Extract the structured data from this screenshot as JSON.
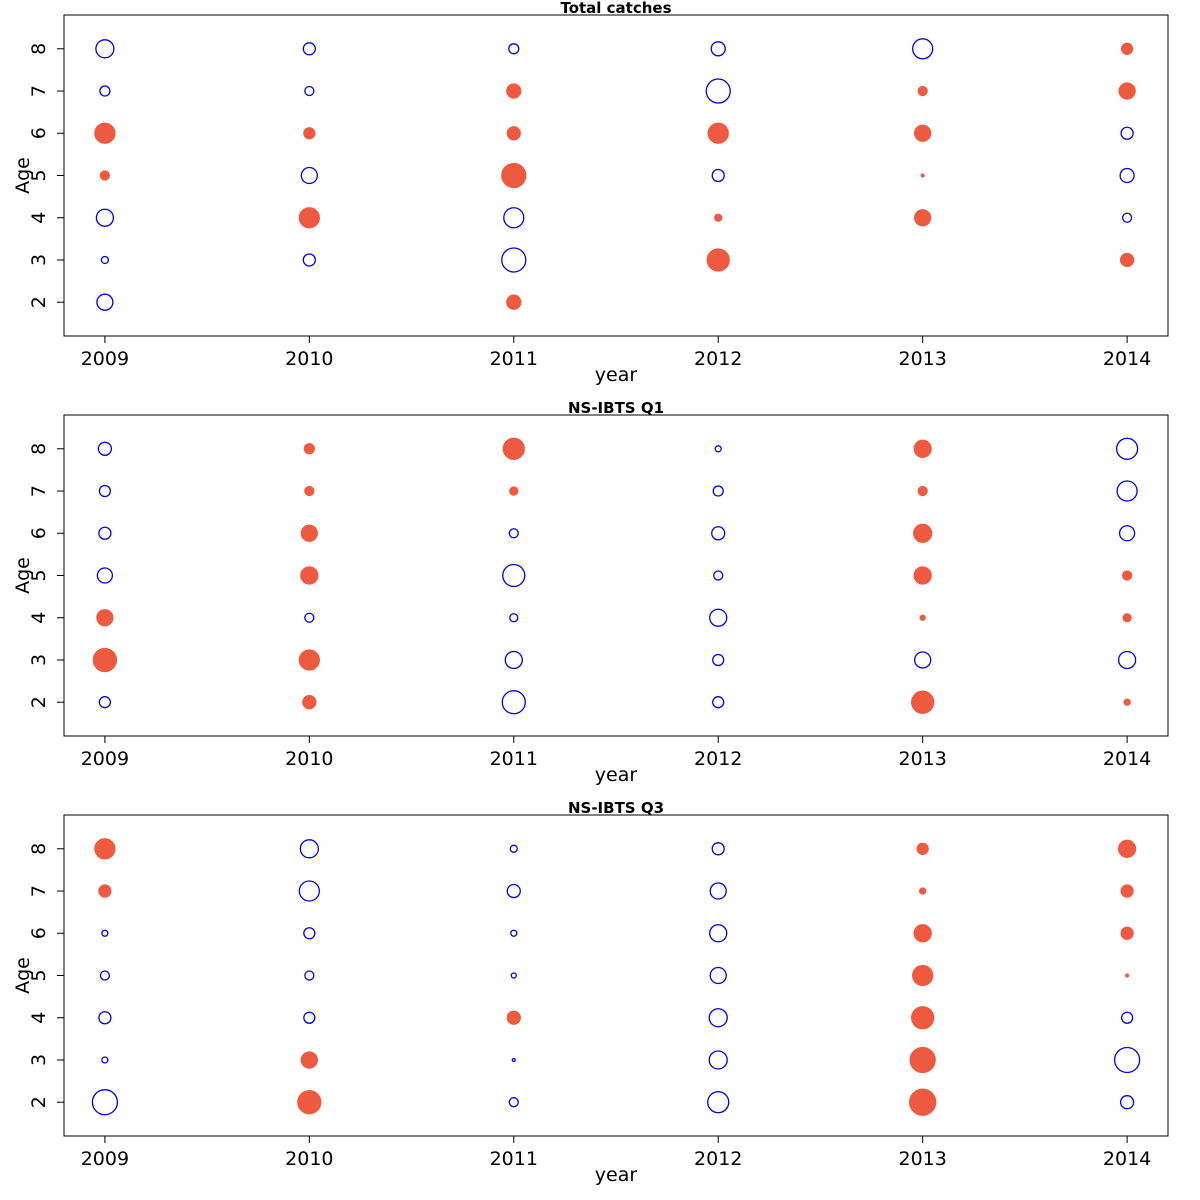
{
  "chart_data": [
    {
      "type": "scatter",
      "subtype": "bubble",
      "title": "Total catches",
      "xlabel": "year",
      "ylabel": "Age",
      "x_ticks": [
        "2009",
        "2010",
        "2011",
        "2012",
        "2013",
        "2014"
      ],
      "y_ticks": [
        "2",
        "3",
        "4",
        "5",
        "6",
        "7",
        "8"
      ],
      "xlim": [
        2008.8,
        2014.2
      ],
      "ylim": [
        1.2,
        8.8
      ],
      "grid": false,
      "legend": "none",
      "encoding": "bubble size = magnitude; filled = positive, open = negative",
      "points": [
        {
          "year": 2009,
          "age": 8,
          "size": 0.9,
          "sign": "neg"
        },
        {
          "year": 2009,
          "age": 7,
          "size": 0.5,
          "sign": "neg"
        },
        {
          "year": 2009,
          "age": 6,
          "size": 1.0,
          "sign": "pos"
        },
        {
          "year": 2009,
          "age": 5,
          "size": 0.45,
          "sign": "pos"
        },
        {
          "year": 2009,
          "age": 4,
          "size": 0.85,
          "sign": "neg"
        },
        {
          "year": 2009,
          "age": 3,
          "size": 0.35,
          "sign": "neg"
        },
        {
          "year": 2009,
          "age": 2,
          "size": 0.8,
          "sign": "neg"
        },
        {
          "year": 2010,
          "age": 8,
          "size": 0.6,
          "sign": "neg"
        },
        {
          "year": 2010,
          "age": 7,
          "size": 0.45,
          "sign": "neg"
        },
        {
          "year": 2010,
          "age": 6,
          "size": 0.55,
          "sign": "pos"
        },
        {
          "year": 2010,
          "age": 5,
          "size": 0.8,
          "sign": "neg"
        },
        {
          "year": 2010,
          "age": 4,
          "size": 1.0,
          "sign": "pos"
        },
        {
          "year": 2010,
          "age": 3,
          "size": 0.6,
          "sign": "neg"
        },
        {
          "year": 2011,
          "age": 8,
          "size": 0.5,
          "sign": "neg"
        },
        {
          "year": 2011,
          "age": 7,
          "size": 0.7,
          "sign": "pos"
        },
        {
          "year": 2011,
          "age": 6,
          "size": 0.65,
          "sign": "pos"
        },
        {
          "year": 2011,
          "age": 5,
          "size": 1.2,
          "sign": "pos"
        },
        {
          "year": 2011,
          "age": 4,
          "size": 1.0,
          "sign": "neg"
        },
        {
          "year": 2011,
          "age": 3,
          "size": 1.2,
          "sign": "neg"
        },
        {
          "year": 2011,
          "age": 2,
          "size": 0.7,
          "sign": "pos"
        },
        {
          "year": 2012,
          "age": 8,
          "size": 0.7,
          "sign": "neg"
        },
        {
          "year": 2012,
          "age": 7,
          "size": 1.2,
          "sign": "neg"
        },
        {
          "year": 2012,
          "age": 6,
          "size": 1.0,
          "sign": "pos"
        },
        {
          "year": 2012,
          "age": 5,
          "size": 0.6,
          "sign": "neg"
        },
        {
          "year": 2012,
          "age": 4,
          "size": 0.35,
          "sign": "pos"
        },
        {
          "year": 2012,
          "age": 3,
          "size": 1.1,
          "sign": "pos"
        },
        {
          "year": 2013,
          "age": 8,
          "size": 1.0,
          "sign": "neg"
        },
        {
          "year": 2013,
          "age": 7,
          "size": 0.45,
          "sign": "pos"
        },
        {
          "year": 2013,
          "age": 6,
          "size": 0.8,
          "sign": "pos"
        },
        {
          "year": 2013,
          "age": 5,
          "size": 0.15,
          "sign": "pos"
        },
        {
          "year": 2013,
          "age": 4,
          "size": 0.8,
          "sign": "pos"
        },
        {
          "year": 2014,
          "age": 8,
          "size": 0.55,
          "sign": "pos"
        },
        {
          "year": 2014,
          "age": 7,
          "size": 0.8,
          "sign": "pos"
        },
        {
          "year": 2014,
          "age": 6,
          "size": 0.6,
          "sign": "neg"
        },
        {
          "year": 2014,
          "age": 5,
          "size": 0.7,
          "sign": "neg"
        },
        {
          "year": 2014,
          "age": 4,
          "size": 0.45,
          "sign": "neg"
        },
        {
          "year": 2014,
          "age": 3,
          "size": 0.65,
          "sign": "pos"
        }
      ]
    },
    {
      "type": "scatter",
      "subtype": "bubble",
      "title": "NS-IBTS Q1",
      "xlabel": "year",
      "ylabel": "Age",
      "x_ticks": [
        "2009",
        "2010",
        "2011",
        "2012",
        "2013",
        "2014"
      ],
      "y_ticks": [
        "2",
        "3",
        "4",
        "5",
        "6",
        "7",
        "8"
      ],
      "xlim": [
        2008.8,
        2014.2
      ],
      "ylim": [
        1.2,
        8.8
      ],
      "grid": false,
      "legend": "none",
      "encoding": "bubble size = magnitude; filled = positive, open = negative",
      "points": [
        {
          "year": 2009,
          "age": 8,
          "size": 0.65,
          "sign": "neg"
        },
        {
          "year": 2009,
          "age": 7,
          "size": 0.55,
          "sign": "neg"
        },
        {
          "year": 2009,
          "age": 6,
          "size": 0.6,
          "sign": "neg"
        },
        {
          "year": 2009,
          "age": 5,
          "size": 0.75,
          "sign": "neg"
        },
        {
          "year": 2009,
          "age": 4,
          "size": 0.8,
          "sign": "pos"
        },
        {
          "year": 2009,
          "age": 3,
          "size": 1.15,
          "sign": "pos"
        },
        {
          "year": 2009,
          "age": 2,
          "size": 0.55,
          "sign": "neg"
        },
        {
          "year": 2010,
          "age": 8,
          "size": 0.5,
          "sign": "pos"
        },
        {
          "year": 2010,
          "age": 7,
          "size": 0.45,
          "sign": "pos"
        },
        {
          "year": 2010,
          "age": 6,
          "size": 0.8,
          "sign": "pos"
        },
        {
          "year": 2010,
          "age": 5,
          "size": 0.85,
          "sign": "pos"
        },
        {
          "year": 2010,
          "age": 4,
          "size": 0.45,
          "sign": "neg"
        },
        {
          "year": 2010,
          "age": 3,
          "size": 1.0,
          "sign": "pos"
        },
        {
          "year": 2010,
          "age": 2,
          "size": 0.65,
          "sign": "pos"
        },
        {
          "year": 2011,
          "age": 8,
          "size": 1.05,
          "sign": "pos"
        },
        {
          "year": 2011,
          "age": 7,
          "size": 0.4,
          "sign": "pos"
        },
        {
          "year": 2011,
          "age": 6,
          "size": 0.45,
          "sign": "neg"
        },
        {
          "year": 2011,
          "age": 5,
          "size": 1.1,
          "sign": "neg"
        },
        {
          "year": 2011,
          "age": 4,
          "size": 0.4,
          "sign": "neg"
        },
        {
          "year": 2011,
          "age": 3,
          "size": 0.85,
          "sign": "neg"
        },
        {
          "year": 2011,
          "age": 2,
          "size": 1.15,
          "sign": "neg"
        },
        {
          "year": 2012,
          "age": 8,
          "size": 0.3,
          "sign": "neg"
        },
        {
          "year": 2012,
          "age": 7,
          "size": 0.5,
          "sign": "neg"
        },
        {
          "year": 2012,
          "age": 6,
          "size": 0.65,
          "sign": "neg"
        },
        {
          "year": 2012,
          "age": 5,
          "size": 0.45,
          "sign": "neg"
        },
        {
          "year": 2012,
          "age": 4,
          "size": 0.85,
          "sign": "neg"
        },
        {
          "year": 2012,
          "age": 3,
          "size": 0.55,
          "sign": "neg"
        },
        {
          "year": 2012,
          "age": 2,
          "size": 0.55,
          "sign": "neg"
        },
        {
          "year": 2013,
          "age": 8,
          "size": 0.85,
          "sign": "pos"
        },
        {
          "year": 2013,
          "age": 7,
          "size": 0.45,
          "sign": "pos"
        },
        {
          "year": 2013,
          "age": 6,
          "size": 0.9,
          "sign": "pos"
        },
        {
          "year": 2013,
          "age": 5,
          "size": 0.85,
          "sign": "pos"
        },
        {
          "year": 2013,
          "age": 4,
          "size": 0.25,
          "sign": "pos"
        },
        {
          "year": 2013,
          "age": 3,
          "size": 0.8,
          "sign": "neg"
        },
        {
          "year": 2013,
          "age": 2,
          "size": 1.1,
          "sign": "pos"
        },
        {
          "year": 2014,
          "age": 8,
          "size": 1.05,
          "sign": "neg"
        },
        {
          "year": 2014,
          "age": 7,
          "size": 1.0,
          "sign": "neg"
        },
        {
          "year": 2014,
          "age": 6,
          "size": 0.75,
          "sign": "neg"
        },
        {
          "year": 2014,
          "age": 5,
          "size": 0.45,
          "sign": "pos"
        },
        {
          "year": 2014,
          "age": 4,
          "size": 0.4,
          "sign": "pos"
        },
        {
          "year": 2014,
          "age": 3,
          "size": 0.85,
          "sign": "neg"
        },
        {
          "year": 2014,
          "age": 2,
          "size": 0.3,
          "sign": "pos"
        }
      ]
    },
    {
      "type": "scatter",
      "subtype": "bubble",
      "title": "NS-IBTS Q3",
      "xlabel": "year",
      "ylabel": "Age",
      "x_ticks": [
        "2009",
        "2010",
        "2011",
        "2012",
        "2013",
        "2014"
      ],
      "y_ticks": [
        "2",
        "3",
        "4",
        "5",
        "6",
        "7",
        "8"
      ],
      "xlim": [
        2008.8,
        2014.2
      ],
      "ylim": [
        1.2,
        8.8
      ],
      "grid": false,
      "legend": "none",
      "encoding": "bubble size = magnitude; filled = positive, open = negative",
      "points": [
        {
          "year": 2009,
          "age": 8,
          "size": 1.0,
          "sign": "pos"
        },
        {
          "year": 2009,
          "age": 7,
          "size": 0.6,
          "sign": "pos"
        },
        {
          "year": 2009,
          "age": 6,
          "size": 0.3,
          "sign": "neg"
        },
        {
          "year": 2009,
          "age": 5,
          "size": 0.45,
          "sign": "neg"
        },
        {
          "year": 2009,
          "age": 4,
          "size": 0.6,
          "sign": "neg"
        },
        {
          "year": 2009,
          "age": 3,
          "size": 0.3,
          "sign": "neg"
        },
        {
          "year": 2009,
          "age": 2,
          "size": 1.25,
          "sign": "neg"
        },
        {
          "year": 2010,
          "age": 8,
          "size": 0.9,
          "sign": "neg"
        },
        {
          "year": 2010,
          "age": 7,
          "size": 1.0,
          "sign": "neg"
        },
        {
          "year": 2010,
          "age": 6,
          "size": 0.55,
          "sign": "neg"
        },
        {
          "year": 2010,
          "age": 5,
          "size": 0.45,
          "sign": "neg"
        },
        {
          "year": 2010,
          "age": 4,
          "size": 0.55,
          "sign": "neg"
        },
        {
          "year": 2010,
          "age": 3,
          "size": 0.8,
          "sign": "pos"
        },
        {
          "year": 2010,
          "age": 2,
          "size": 1.15,
          "sign": "pos"
        },
        {
          "year": 2011,
          "age": 8,
          "size": 0.35,
          "sign": "neg"
        },
        {
          "year": 2011,
          "age": 7,
          "size": 0.65,
          "sign": "neg"
        },
        {
          "year": 2011,
          "age": 6,
          "size": 0.3,
          "sign": "neg"
        },
        {
          "year": 2011,
          "age": 5,
          "size": 0.25,
          "sign": "neg"
        },
        {
          "year": 2011,
          "age": 4,
          "size": 0.65,
          "sign": "pos"
        },
        {
          "year": 2011,
          "age": 3,
          "size": 0.15,
          "sign": "neg"
        },
        {
          "year": 2011,
          "age": 2,
          "size": 0.45,
          "sign": "neg"
        },
        {
          "year": 2012,
          "age": 8,
          "size": 0.6,
          "sign": "neg"
        },
        {
          "year": 2012,
          "age": 7,
          "size": 0.8,
          "sign": "neg"
        },
        {
          "year": 2012,
          "age": 6,
          "size": 0.85,
          "sign": "neg"
        },
        {
          "year": 2012,
          "age": 5,
          "size": 0.8,
          "sign": "neg"
        },
        {
          "year": 2012,
          "age": 4,
          "size": 0.9,
          "sign": "neg"
        },
        {
          "year": 2012,
          "age": 3,
          "size": 0.9,
          "sign": "neg"
        },
        {
          "year": 2012,
          "age": 2,
          "size": 1.05,
          "sign": "neg"
        },
        {
          "year": 2013,
          "age": 8,
          "size": 0.55,
          "sign": "pos"
        },
        {
          "year": 2013,
          "age": 7,
          "size": 0.3,
          "sign": "pos"
        },
        {
          "year": 2013,
          "age": 6,
          "size": 0.85,
          "sign": "pos"
        },
        {
          "year": 2013,
          "age": 5,
          "size": 1.0,
          "sign": "pos"
        },
        {
          "year": 2013,
          "age": 4,
          "size": 1.1,
          "sign": "pos"
        },
        {
          "year": 2013,
          "age": 3,
          "size": 1.25,
          "sign": "pos"
        },
        {
          "year": 2013,
          "age": 2,
          "size": 1.3,
          "sign": "pos"
        },
        {
          "year": 2014,
          "age": 8,
          "size": 0.85,
          "sign": "pos"
        },
        {
          "year": 2014,
          "age": 7,
          "size": 0.6,
          "sign": "pos"
        },
        {
          "year": 2014,
          "age": 6,
          "size": 0.6,
          "sign": "pos"
        },
        {
          "year": 2014,
          "age": 5,
          "size": 0.15,
          "sign": "pos"
        },
        {
          "year": 2014,
          "age": 4,
          "size": 0.55,
          "sign": "neg"
        },
        {
          "year": 2014,
          "age": 3,
          "size": 1.25,
          "sign": "neg"
        },
        {
          "year": 2014,
          "age": 2,
          "size": 0.65,
          "sign": "neg"
        }
      ]
    }
  ],
  "colors": {
    "positive_fill": "#EE5A3F",
    "negative_stroke": "#0000EE",
    "axis": "#000000"
  }
}
